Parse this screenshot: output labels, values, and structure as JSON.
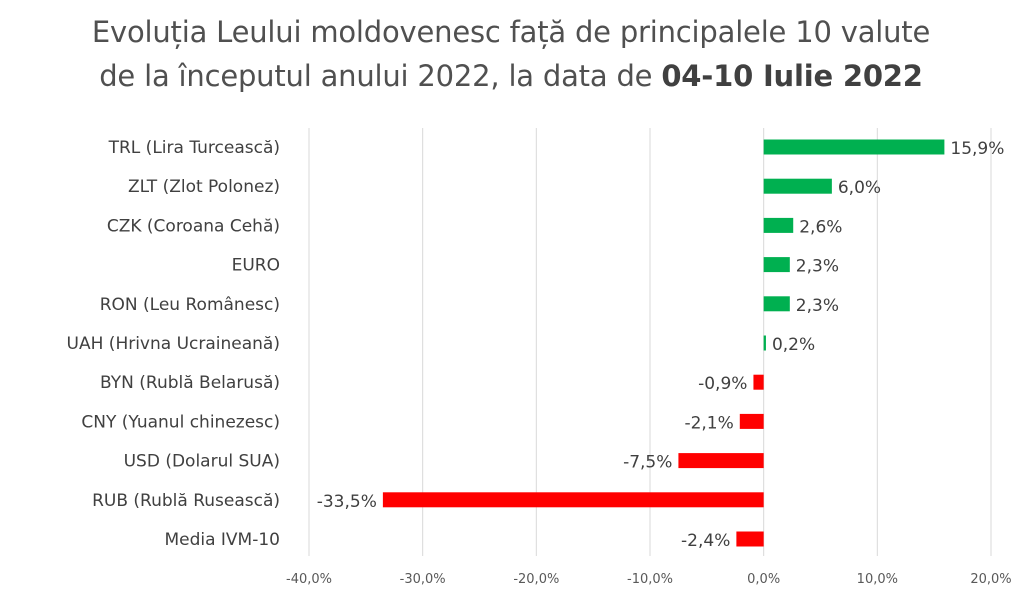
{
  "chart_data": {
    "type": "bar",
    "orientation": "horizontal",
    "title_line1": "Evoluția Leului moldovenesc față de principalele 10 valute",
    "title_line2_prefix": "de la începutul anului 2022, la data de ",
    "title_line2_bold": "04-10 Iulie 2022",
    "categories": [
      "TRL (Lira Turcească)",
      "ZLT (Zlot Polonez)",
      "CZK (Coroana Cehă)",
      "EURO",
      "RON (Leu Românesc)",
      "UAH (Hrivna Ucraineană)",
      "BYN (Rublă Belarusă)",
      "CNY (Yuanul chinezesc)",
      "USD (Dolarul SUA)",
      "RUB (Rublă Rusească)",
      "Media IVM-10"
    ],
    "values": [
      15.9,
      6.0,
      2.6,
      2.3,
      2.3,
      0.2,
      -0.9,
      -2.1,
      -7.5,
      -33.5,
      -2.4
    ],
    "value_labels": [
      "15,9%",
      "6,0%",
      "2,6%",
      "2,3%",
      "2,3%",
      "0,2%",
      "-0,9%",
      "-2,1%",
      "-7,5%",
      "-33,5%",
      "-2,4%"
    ],
    "xlim": [
      -40,
      20
    ],
    "ticks": [
      -40,
      -30,
      -20,
      -10,
      0,
      10,
      20
    ],
    "tick_labels": [
      "-40,0%",
      "-30,0%",
      "-20,0%",
      "-10,0%",
      "0,0%",
      "10,0%",
      "20,0%"
    ],
    "grid": true,
    "colors": {
      "positive": "#00b050",
      "negative": "#ff0000",
      "grid": "#d9d9d9"
    }
  }
}
